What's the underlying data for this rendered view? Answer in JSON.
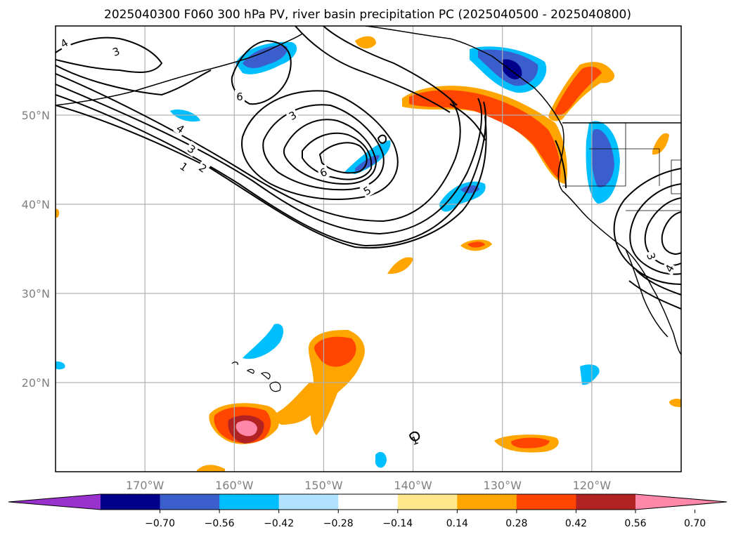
{
  "chart_data": {
    "type": "contour_map",
    "title": "2025040300 F060 300 hPa PV, river basin precipitation PC (2025040500 - 2025040800)",
    "map": {
      "lon_range": [
        -180,
        -110
      ],
      "lat_range": [
        10,
        60
      ],
      "lat_ticks": [
        {
          "value": 50,
          "label": "50°N"
        },
        {
          "value": 40,
          "label": "40°N"
        },
        {
          "value": 30,
          "label": "30°N"
        },
        {
          "value": 20,
          "label": "20°N"
        }
      ],
      "lon_ticks": [
        {
          "value": -170,
          "label": "170°W"
        },
        {
          "value": -160,
          "label": "160°W"
        },
        {
          "value": -150,
          "label": "150°W"
        },
        {
          "value": -140,
          "label": "140°W"
        },
        {
          "value": -130,
          "label": "130°W"
        },
        {
          "value": -120,
          "label": "120°W"
        }
      ],
      "grid": true
    },
    "pv_contour_labels": [
      "4",
      "3",
      "6",
      "3",
      "4",
      "3",
      "2",
      "1",
      "6",
      "5",
      "3",
      "4",
      "1"
    ],
    "colorbar": {
      "ticks": [
        "−0.70",
        "−0.56",
        "−0.42",
        "−0.28",
        "−0.14",
        "0.14",
        "0.28",
        "0.42",
        "0.56",
        "0.70"
      ],
      "colors": [
        "#9932cc",
        "#00008b",
        "#3a5fcd",
        "#00bfff",
        "#b0e2ff",
        "#ffffff",
        "#ffe88c",
        "#ffa500",
        "#ff4500",
        "#b22222",
        "#ff88aa"
      ],
      "extend": "both"
    },
    "precip_pc_colors": {
      "very_low": "#00008b",
      "low": "#3a5fcd",
      "mid_low": "#00bfff",
      "slight_low": "#b0e2ff",
      "slight_high": "#ffe88c",
      "mid_high": "#ffa500",
      "high": "#ff4500",
      "very_high": "#b22222",
      "extreme": "#ff88aa"
    }
  }
}
